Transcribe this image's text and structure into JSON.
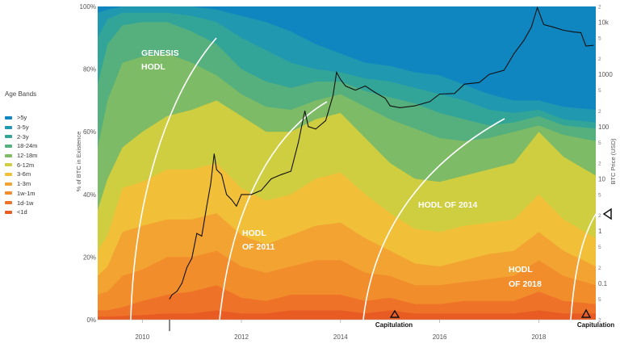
{
  "legend": {
    "title": "Age Bands",
    "items": [
      {
        "label": ">5y",
        "color": "#0f86c0"
      },
      {
        "label": "3-5y",
        "color": "#1f98b0"
      },
      {
        "label": "2-3y",
        "color": "#33a598"
      },
      {
        "label": "18-24m",
        "color": "#55b07e"
      },
      {
        "label": "12-18m",
        "color": "#7dbb66"
      },
      {
        "label": "6-12m",
        "color": "#cfcd40"
      },
      {
        "label": "3-6m",
        "color": "#f2bf38"
      },
      {
        "label": "1-3m",
        "color": "#f3a332"
      },
      {
        "label": "1w-1m",
        "color": "#f28d2c"
      },
      {
        "label": "1d-1w",
        "color": "#ee7228"
      },
      {
        "label": "<1d",
        "color": "#e85c24"
      }
    ]
  },
  "chart_data": {
    "type": "area",
    "stacked": true,
    "normalized": true,
    "xlabel": "",
    "ylabel": "% of BTC in Existence",
    "y2label": "BTC Price (USD)",
    "y2scale": "log",
    "xlim": [
      2009.1,
      2019.15
    ],
    "ylim": [
      0,
      100
    ],
    "y2lim": [
      0.02,
      20000
    ],
    "x_ticks": [
      "2010",
      "2012",
      "2014",
      "2016",
      "2018"
    ],
    "y_ticks": [
      "0%",
      "20%",
      "40%",
      "60%",
      "80%",
      "100%"
    ],
    "y2_ticks": [
      "0.1",
      "1",
      "10",
      "100",
      "1000",
      "10k"
    ],
    "y2_minor_ticks": [
      "2",
      "5",
      "2",
      "5",
      "2",
      "5",
      "2",
      "5",
      "2",
      "5",
      "2",
      "5",
      "2"
    ],
    "boundaries": {
      "x": [
        2009.1,
        2009.3,
        2009.6,
        2010.0,
        2010.5,
        2011.0,
        2011.5,
        2012.0,
        2012.5,
        2013.0,
        2013.5,
        2014.0,
        2014.5,
        2015.0,
        2015.5,
        2016.0,
        2016.5,
        2017.0,
        2017.5,
        2018.0,
        2018.5,
        2019.15
      ],
      "cumulative_percent": [
        [
          1,
          1,
          1.2,
          1.5,
          2,
          2,
          3,
          2,
          2,
          3,
          3,
          3,
          2,
          3,
          2,
          2,
          2,
          2,
          2,
          3,
          2,
          2
        ],
        [
          3,
          3,
          4,
          6,
          8,
          9,
          11,
          7,
          6,
          8,
          8,
          8,
          6,
          7,
          5,
          5,
          6,
          6,
          6,
          9,
          6,
          5
        ],
        [
          8,
          9,
          14,
          16,
          20,
          20,
          22,
          17,
          15,
          17,
          19,
          19,
          15,
          14,
          11,
          11,
          12,
          13,
          14,
          19,
          14,
          11
        ],
        [
          14,
          17,
          28,
          30,
          32,
          32,
          34,
          27,
          24,
          27,
          30,
          31,
          26,
          22,
          18,
          17,
          19,
          21,
          22,
          28,
          22,
          17
        ],
        [
          22,
          27,
          42,
          44,
          48,
          48,
          50,
          42,
          38,
          40,
          45,
          47,
          40,
          34,
          29,
          28,
          30,
          31,
          32,
          40,
          32,
          26
        ],
        [
          35,
          45,
          55,
          60,
          65,
          67,
          70,
          65,
          60,
          60,
          64,
          66,
          58,
          50,
          45,
          44,
          46,
          48,
          50,
          60,
          52,
          46
        ],
        [
          55,
          70,
          82,
          84,
          85,
          82,
          78,
          72,
          68,
          67,
          70,
          72,
          68,
          64,
          61,
          58,
          57,
          58,
          60,
          62,
          59,
          57
        ],
        [
          75,
          88,
          94,
          95,
          95,
          92,
          88,
          80,
          76,
          74,
          76,
          76,
          73,
          71,
          69,
          66,
          64,
          62,
          63,
          65,
          62,
          61
        ],
        [
          90,
          96,
          98,
          98,
          98,
          97,
          95,
          90,
          86,
          82,
          80,
          79,
          77,
          76,
          74,
          72,
          70,
          67,
          66,
          67,
          64,
          63
        ],
        [
          98,
          99,
          100,
          100,
          100,
          100,
          99,
          97,
          95,
          92,
          88,
          85,
          82,
          81,
          79,
          78,
          75,
          72,
          70,
          70,
          68,
          67
        ],
        [
          100,
          100,
          100,
          100,
          100,
          100,
          100,
          100,
          100,
          100,
          100,
          100,
          100,
          100,
          100,
          100,
          100,
          100,
          100,
          100,
          100,
          100
        ]
      ]
    },
    "price": [
      {
        "x": 2010.55,
        "y": 0.05
      },
      {
        "x": 2010.6,
        "y": 0.06
      },
      {
        "x": 2010.7,
        "y": 0.07
      },
      {
        "x": 2010.8,
        "y": 0.1
      },
      {
        "x": 2010.9,
        "y": 0.2
      },
      {
        "x": 2011.0,
        "y": 0.3
      },
      {
        "x": 2011.1,
        "y": 0.9
      },
      {
        "x": 2011.2,
        "y": 0.8
      },
      {
        "x": 2011.3,
        "y": 3
      },
      {
        "x": 2011.38,
        "y": 8
      },
      {
        "x": 2011.45,
        "y": 30
      },
      {
        "x": 2011.5,
        "y": 15
      },
      {
        "x": 2011.6,
        "y": 12
      },
      {
        "x": 2011.7,
        "y": 5
      },
      {
        "x": 2011.8,
        "y": 4
      },
      {
        "x": 2011.9,
        "y": 3
      },
      {
        "x": 2012.0,
        "y": 5
      },
      {
        "x": 2012.2,
        "y": 5
      },
      {
        "x": 2012.4,
        "y": 6
      },
      {
        "x": 2012.6,
        "y": 10
      },
      {
        "x": 2012.8,
        "y": 12
      },
      {
        "x": 2013.0,
        "y": 14
      },
      {
        "x": 2013.15,
        "y": 50
      },
      {
        "x": 2013.28,
        "y": 200
      },
      {
        "x": 2013.35,
        "y": 100
      },
      {
        "x": 2013.5,
        "y": 90
      },
      {
        "x": 2013.7,
        "y": 130
      },
      {
        "x": 2013.85,
        "y": 400
      },
      {
        "x": 2013.92,
        "y": 1100
      },
      {
        "x": 2014.0,
        "y": 800
      },
      {
        "x": 2014.1,
        "y": 600
      },
      {
        "x": 2014.3,
        "y": 500
      },
      {
        "x": 2014.5,
        "y": 600
      },
      {
        "x": 2014.7,
        "y": 450
      },
      {
        "x": 2014.9,
        "y": 350
      },
      {
        "x": 2015.0,
        "y": 250
      },
      {
        "x": 2015.2,
        "y": 230
      },
      {
        "x": 2015.5,
        "y": 250
      },
      {
        "x": 2015.8,
        "y": 300
      },
      {
        "x": 2016.0,
        "y": 420
      },
      {
        "x": 2016.3,
        "y": 430
      },
      {
        "x": 2016.5,
        "y": 650
      },
      {
        "x": 2016.8,
        "y": 700
      },
      {
        "x": 2017.0,
        "y": 1000
      },
      {
        "x": 2017.3,
        "y": 1200
      },
      {
        "x": 2017.5,
        "y": 2500
      },
      {
        "x": 2017.7,
        "y": 4500
      },
      {
        "x": 2017.85,
        "y": 8000
      },
      {
        "x": 2017.97,
        "y": 19000
      },
      {
        "x": 2018.1,
        "y": 9000
      },
      {
        "x": 2018.3,
        "y": 8000
      },
      {
        "x": 2018.5,
        "y": 7000
      },
      {
        "x": 2018.7,
        "y": 6500
      },
      {
        "x": 2018.85,
        "y": 6300
      },
      {
        "x": 2018.95,
        "y": 3500
      },
      {
        "x": 2019.1,
        "y": 3600
      }
    ],
    "annotations": {
      "genesis": [
        "GENESIS",
        "HODL"
      ],
      "hodl2011": [
        "HODL",
        "OF 2011"
      ],
      "hodl2014": "HODL OF 2014",
      "hodl2018": [
        "HODL",
        "OF 2018"
      ],
      "capitulation_1": "Capitulation",
      "capitulation_2": "Capitulation"
    }
  }
}
